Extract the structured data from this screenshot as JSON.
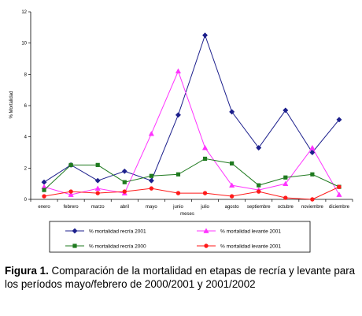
{
  "caption": {
    "label": "Figura 1.",
    "text": "Comparación de la mortalidad en etapas de recría y levante para los períodos mayo/febrero de 2000/2001 y 2001/2002"
  },
  "chart_data": {
    "type": "line",
    "xlabel": "meses",
    "ylabel": "% Mortalidad",
    "ylim": [
      0,
      12
    ],
    "yticks": [
      0,
      2,
      4,
      6,
      8,
      10,
      12
    ],
    "grid": false,
    "legend_position": "bottom",
    "categories": [
      "enero",
      "febrero",
      "marzo",
      "abril",
      "mayo",
      "junio",
      "julio",
      "agosto",
      "septiembre",
      "octubre",
      "noviembre",
      "diciembre"
    ],
    "series": [
      {
        "name": "% mortalidad recría 2001",
        "color": "#1c1f8c",
        "marker": "diamond",
        "values": [
          1.1,
          2.2,
          1.2,
          1.8,
          1.2,
          5.4,
          10.5,
          5.6,
          3.3,
          5.7,
          3.0,
          5.1
        ]
      },
      {
        "name": "% mortalidad levante 2001",
        "color": "#ff33ff",
        "marker": "triangle",
        "values": [
          0.8,
          0.3,
          0.7,
          0.4,
          4.2,
          8.2,
          3.3,
          0.9,
          0.6,
          1.0,
          3.3,
          0.3
        ]
      },
      {
        "name": "% mortalidad recría 2000",
        "color": "#1f7a1f",
        "marker": "square",
        "values": [
          0.6,
          2.2,
          2.2,
          1.1,
          1.5,
          1.6,
          2.6,
          2.3,
          0.9,
          1.4,
          1.6,
          0.8
        ]
      },
      {
        "name": "% mortalidad levante 2001",
        "color": "#ff1a1a",
        "marker": "circle",
        "values": [
          0.2,
          0.5,
          0.4,
          0.5,
          0.7,
          0.4,
          0.4,
          0.2,
          0.5,
          0.1,
          0.0,
          0.8
        ]
      }
    ]
  }
}
